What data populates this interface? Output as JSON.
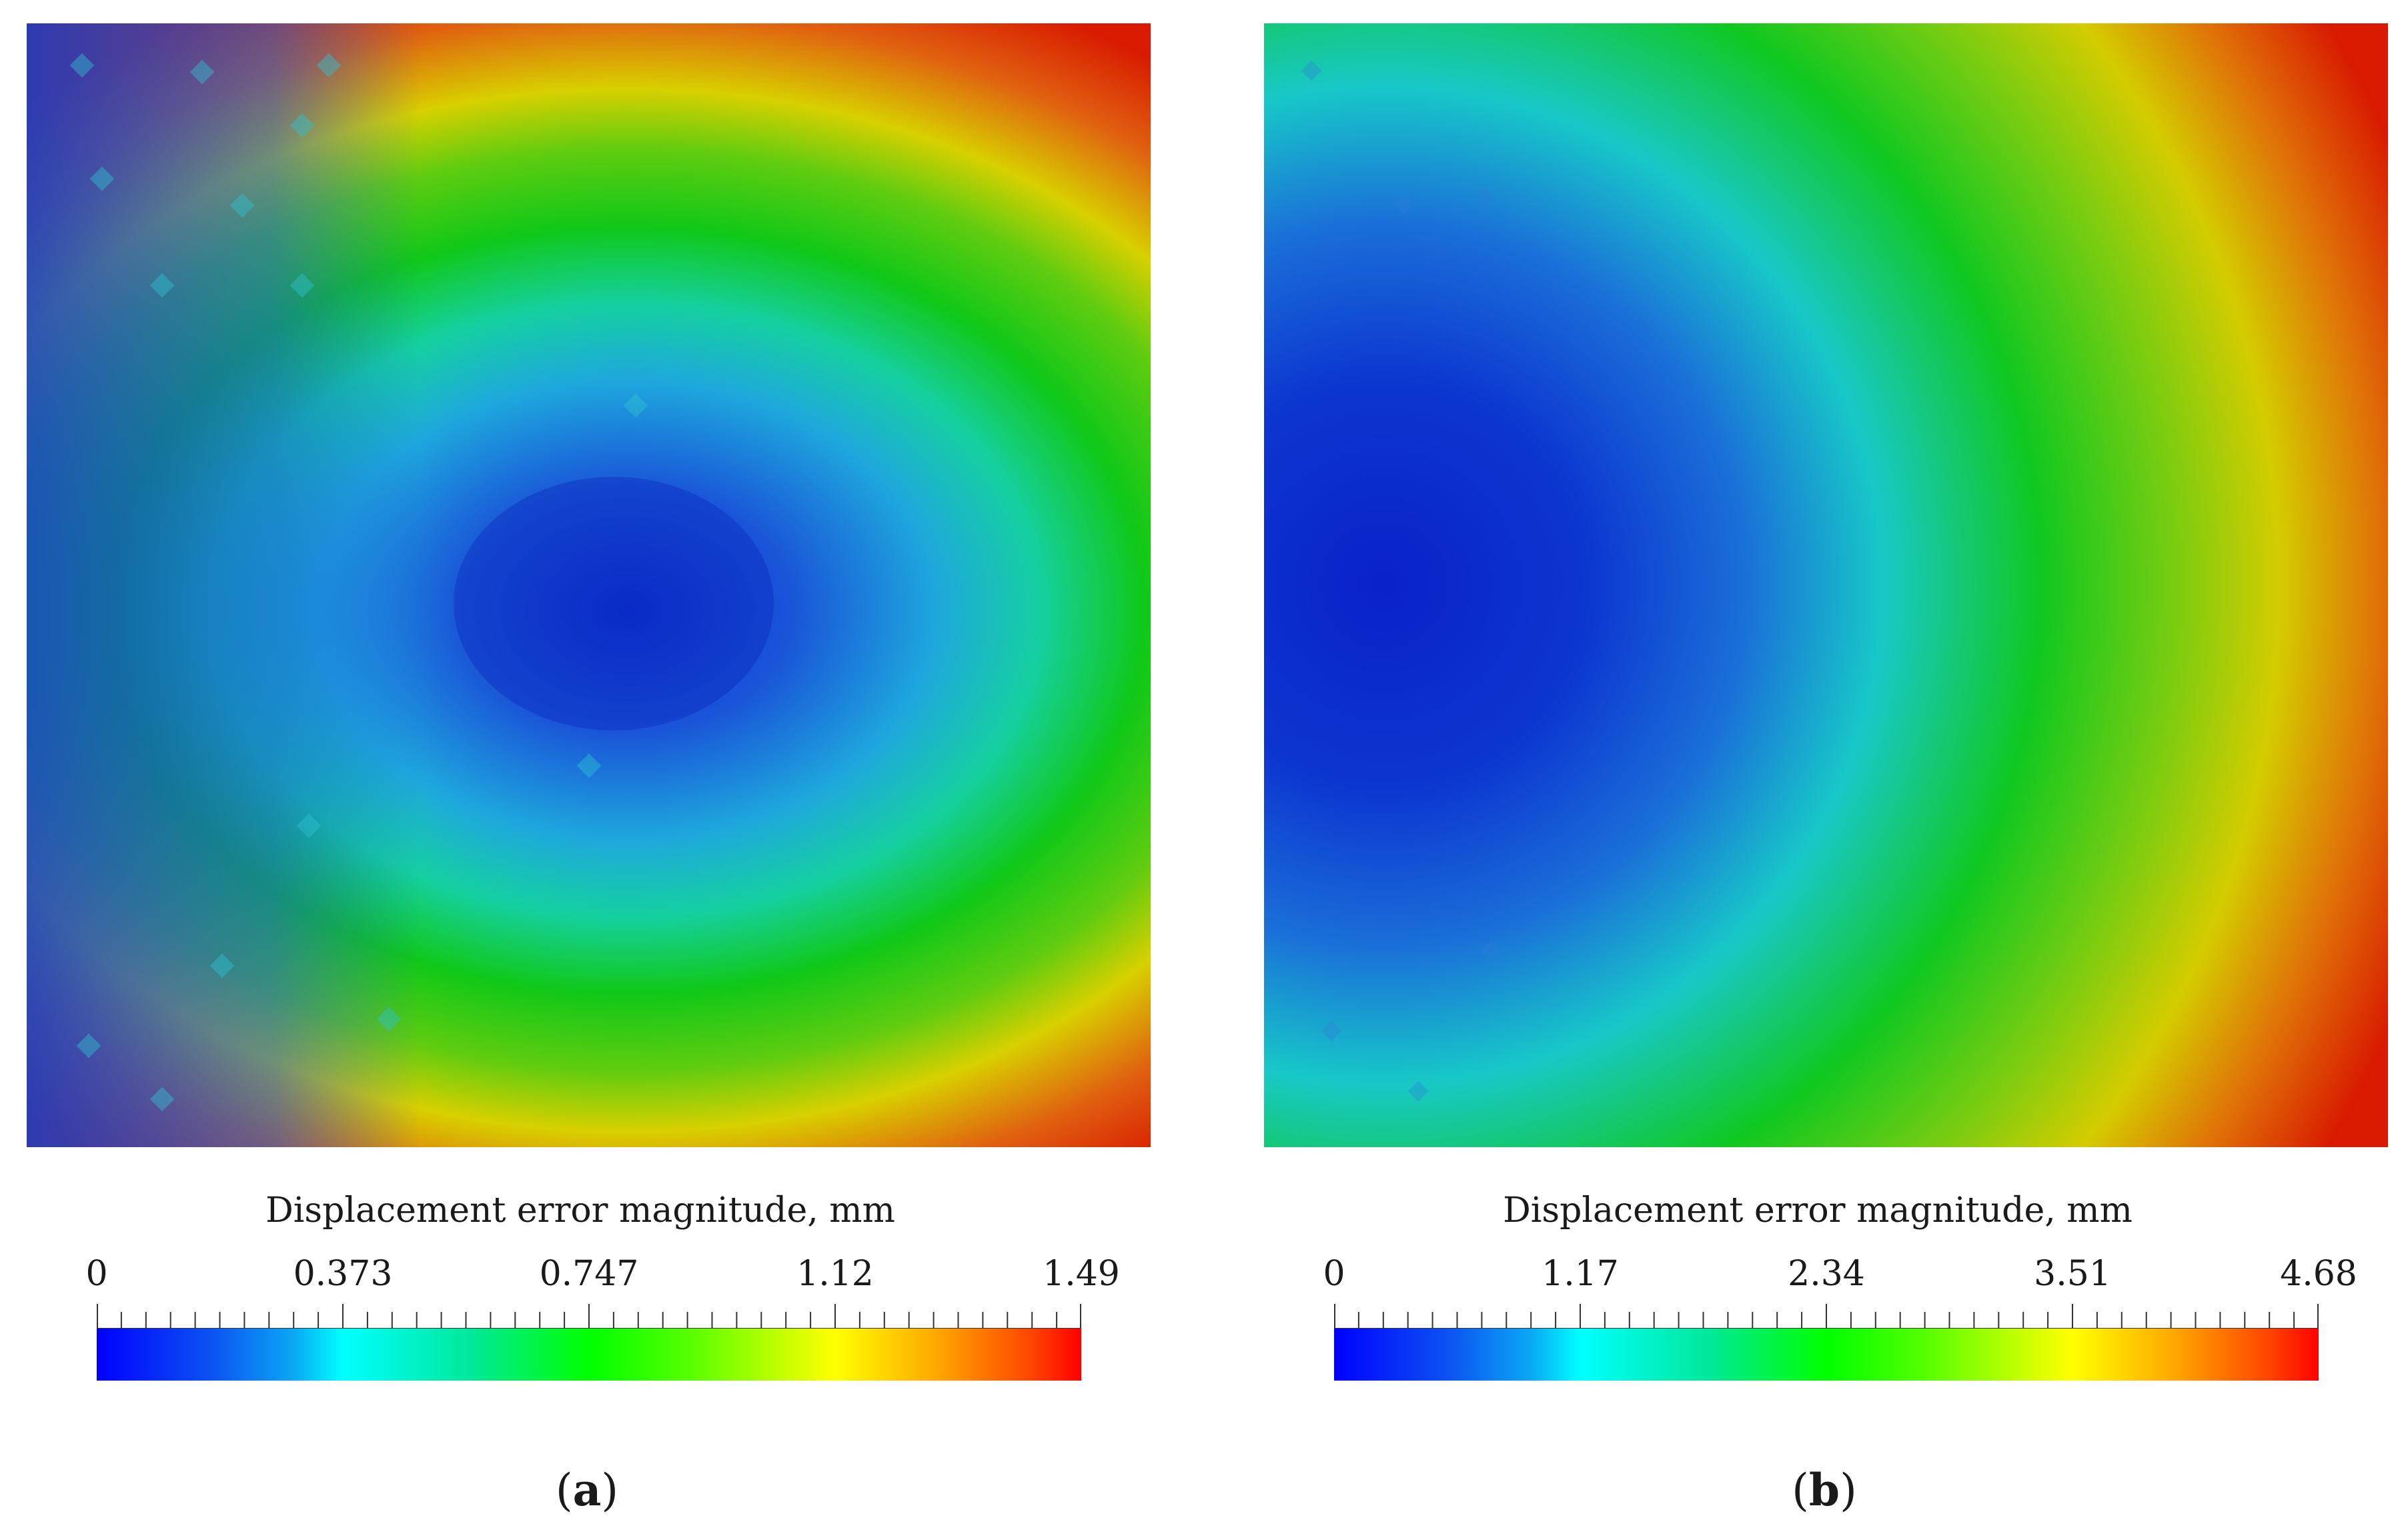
{
  "panels": [
    {
      "id": "a",
      "caption_letter": "a",
      "colorbar": {
        "title": "Displacement error magnitude, mm",
        "labels": [
          "0",
          "0.373",
          "0.747",
          "1.12",
          "1.49"
        ],
        "min": 0,
        "max": 1.49
      }
    },
    {
      "id": "b",
      "caption_letter": "b",
      "colorbar": {
        "title": "Displacement error magnitude, mm",
        "labels": [
          "0",
          "1.17",
          "2.34",
          "3.51",
          "4.68"
        ],
        "min": 0,
        "max": 4.68
      }
    }
  ],
  "colormap": [
    "#0000ff",
    "#00ffff",
    "#00ff00",
    "#ffff00",
    "#ff0000"
  ]
}
